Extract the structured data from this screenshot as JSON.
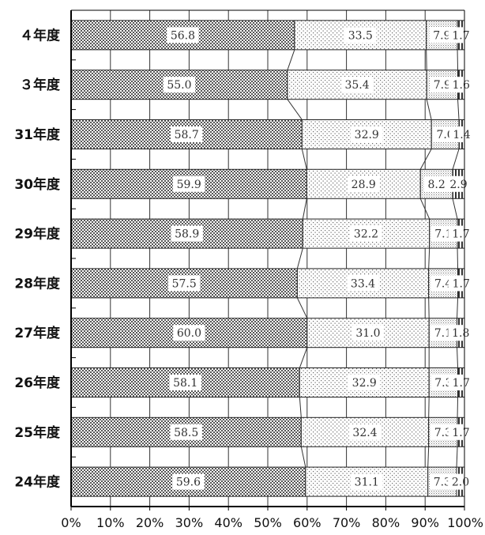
{
  "chart_data": {
    "type": "bar",
    "orientation": "horizontal",
    "stacked": true,
    "percent": true,
    "categories": [
      "４年度",
      "３年度",
      "31年度",
      "30年度",
      "29年度",
      "28年度",
      "27年度",
      "26年度",
      "25年度",
      "24年度"
    ],
    "series": [
      {
        "values": [
          56.8,
          55.0,
          58.7,
          59.9,
          58.9,
          57.5,
          60.0,
          58.1,
          58.5,
          59.6
        ],
        "labels": [
          "56.8",
          "55.0",
          "58.7",
          "59.9",
          "58.9",
          "57.5",
          "60.0",
          "58.1",
          "58.5",
          "59.6"
        ]
      },
      {
        "values": [
          33.5,
          35.4,
          32.9,
          28.9,
          32.2,
          33.4,
          31.0,
          32.9,
          32.4,
          31.1
        ],
        "labels": [
          "33.5",
          "35.4",
          "32.9",
          "28.9",
          "32.2",
          "33.4",
          "31.0",
          "32.9",
          "32.4",
          "31.1"
        ]
      },
      {
        "values": [
          7.9,
          7.9,
          7.0,
          8.2,
          7.1,
          7.4,
          7.1,
          7.3,
          7.3,
          7.3
        ],
        "labels": [
          "7.9",
          "7.9",
          "7.0",
          "8.2",
          "7.1",
          "7.4",
          "7.1",
          "7.3",
          "7.3",
          "7.3"
        ]
      },
      {
        "values": [
          1.7,
          1.6,
          1.4,
          2.9,
          1.7,
          1.7,
          1.8,
          1.7,
          1.7,
          2.0
        ],
        "labels": [
          "1.7",
          "1.6",
          "1.4",
          "2.9",
          "1.7",
          "1.7",
          "1.8",
          "1.7",
          "1.7",
          "2.0"
        ]
      }
    ],
    "xlim": [
      0,
      100
    ],
    "x_ticks": [
      "0%",
      "10%",
      "20%",
      "30%",
      "40%",
      "50%",
      "60%",
      "70%",
      "80%",
      "90%",
      "100%"
    ],
    "grid": true,
    "legend": "none"
  }
}
